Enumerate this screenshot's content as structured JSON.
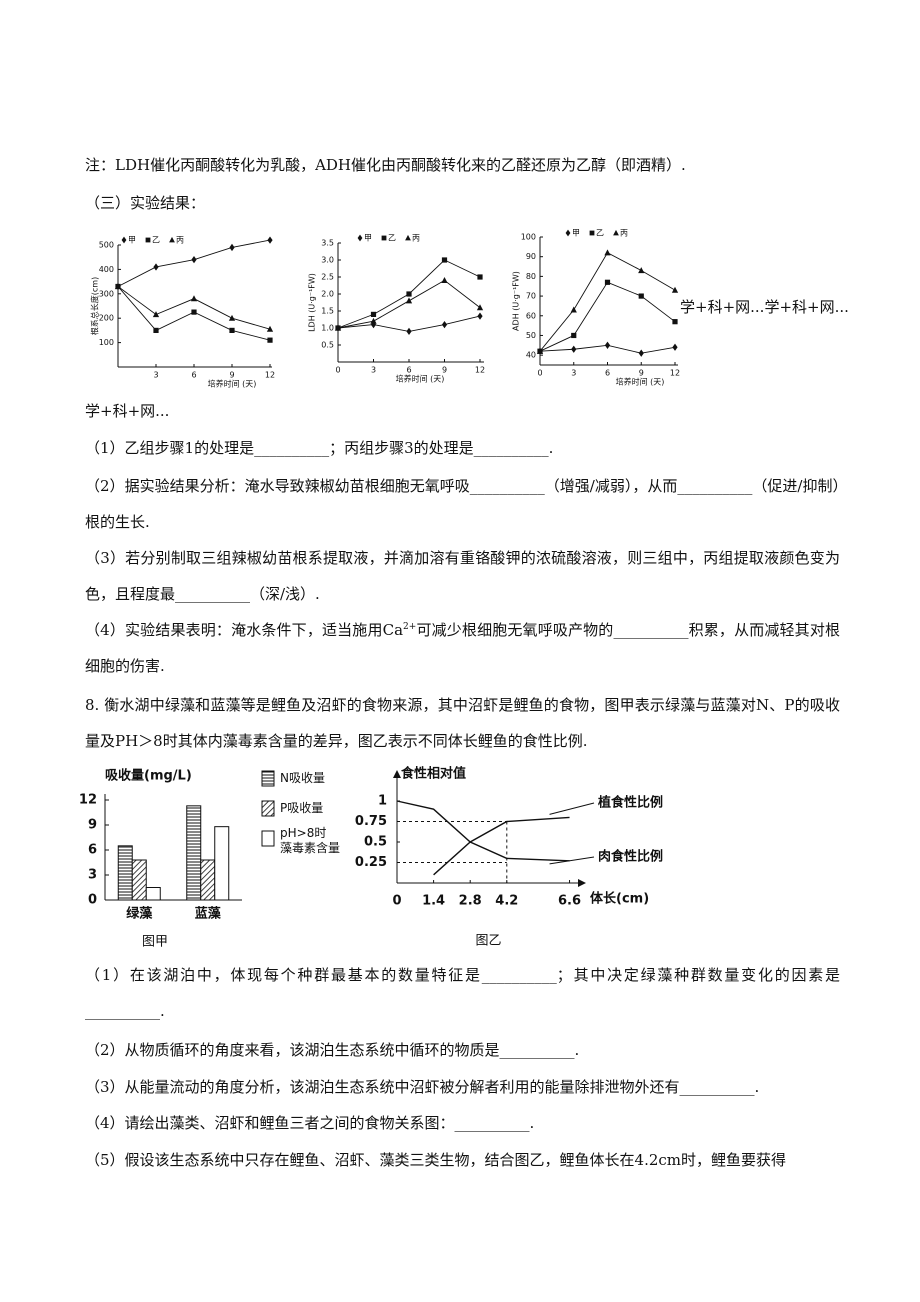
{
  "note": "注：LDH催化丙酮酸转化为乳酸，ADH催化由丙酮酸转化来的乙醛还原为乙醇（即酒精）.",
  "section": "（三）实验结果：",
  "figures_top": [
    {
      "type": "line",
      "y_label": "根系总长度(cm)",
      "x_label": "培养时间 (天)",
      "x": [
        0,
        3,
        6,
        9,
        12
      ],
      "xlim": [
        0,
        12
      ],
      "xticks": [
        3,
        6,
        9,
        12
      ],
      "ylim": [
        0,
        500
      ],
      "yticks": [
        100,
        200,
        300,
        400,
        500
      ],
      "series": [
        {
          "name": "甲",
          "marker": "diamond",
          "values": [
            330,
            410,
            440,
            490,
            520
          ]
        },
        {
          "name": "乙",
          "marker": "square",
          "values": [
            330,
            150,
            225,
            150,
            110
          ]
        },
        {
          "name": "丙",
          "marker": "triangle",
          "values": [
            330,
            215,
            280,
            200,
            155
          ]
        }
      ]
    },
    {
      "type": "line",
      "y_label": "LDH (U·g⁻¹FW)",
      "x_label": "培养时间 (天)",
      "x": [
        0,
        3,
        6,
        9,
        12
      ],
      "xlim": [
        0,
        12
      ],
      "xticks": [
        0,
        3,
        6,
        9,
        12
      ],
      "ylim": [
        0,
        3.5
      ],
      "yticks": [
        0.5,
        {
          "value": 1,
          "label": "1.0"
        },
        1.5,
        {
          "value": 2,
          "label": "2.0"
        },
        2.5,
        {
          "value": 3,
          "label": "3.0"
        },
        3.5
      ],
      "series": [
        {
          "name": "甲",
          "marker": "diamond",
          "values": [
            1.0,
            1.1,
            0.9,
            1.1,
            1.35
          ]
        },
        {
          "name": "乙",
          "marker": "square",
          "values": [
            1.0,
            1.4,
            2.0,
            3.0,
            2.5
          ]
        },
        {
          "name": "丙",
          "marker": "triangle",
          "values": [
            1.0,
            1.2,
            1.8,
            2.4,
            1.6
          ]
        }
      ]
    },
    {
      "type": "line",
      "y_label": "ADH (U·g⁻¹FW)",
      "x_label": "培养时间 (天)",
      "x": [
        0,
        3,
        6,
        9,
        12
      ],
      "xlim": [
        0,
        12
      ],
      "xticks": [
        0,
        3,
        6,
        9,
        12
      ],
      "ylim": [
        35,
        100
      ],
      "yticks": [
        40,
        50,
        60,
        70,
        80,
        90,
        100
      ],
      "series": [
        {
          "name": "甲",
          "marker": "diamond",
          "values": [
            42,
            43,
            45,
            41,
            44
          ]
        },
        {
          "name": "乙",
          "marker": "square",
          "values": [
            42,
            50,
            77,
            70,
            57
          ]
        },
        {
          "name": "丙",
          "marker": "triangle",
          "values": [
            42,
            63,
            92,
            83,
            73
          ]
        }
      ]
    }
  ],
  "watermark_right": "学+科+网...学+科+网...",
  "watermark_left": "学+科+网...",
  "q7": [
    "（1）乙组步骤1的处理是__________；丙组步骤3的处理是__________.",
    "（2）据实验结果分析：淹水导致辣椒幼苗根细胞无氧呼吸__________（增强/减弱），从而__________（促进/抑制）根的生长.",
    "（3）若分别制取三组辣椒幼苗根系提取液，并滴加溶有重铬酸钾的浓硫酸溶液，则三组中，丙组提取液颜色变为色，且程度最__________（深/浅）."
  ],
  "q7_4": {
    "before": "（4）实验结果表明：淹水条件下，适当施用Ca",
    "sup": "2+",
    "after": "可减少根细胞无氧呼吸产物的__________积累，从而减轻其对根细胞的伤害."
  },
  "q8_stem": "8. 衡水湖中绿藻和蓝藻等是鲤鱼及沼虾的食物来源，其中沼虾是鲤鱼的食物，图甲表示绿藻与蓝藻对N、P的吸收量及PH＞8时其体内藻毒素含量的差异，图乙表示不同体长鲤鱼的食性比例.",
  "fig_a": {
    "type": "bar",
    "caption": "图甲",
    "y_label": "吸收量(mg/L)",
    "categories": [
      "绿藻",
      "蓝藻"
    ],
    "ylim": [
      0,
      12
    ],
    "yticks": [
      0,
      3,
      6,
      9,
      12
    ],
    "series": [
      {
        "name": "N吸收量",
        "pattern": "horizontal",
        "values": [
          6.5,
          11.3
        ]
      },
      {
        "name": "P吸收量",
        "pattern": "diagonal",
        "values": [
          4.8,
          4.8
        ]
      },
      {
        "name": "pH>8时\n藻毒素含量",
        "pattern": "none",
        "values": [
          1.5,
          8.8
        ]
      }
    ]
  },
  "fig_b": {
    "type": "line",
    "caption": "图乙",
    "y_label": "食性相对值",
    "x_label": "体长(cm)",
    "x": [
      0,
      1.4,
      2.8,
      4.2,
      6.6
    ],
    "xlim": [
      0,
      7
    ],
    "xticks": [
      0,
      1.4,
      2.8,
      4.2,
      6.6
    ],
    "ylim": [
      0,
      1
    ],
    "yticks": [
      0.25,
      0.5,
      0.75,
      1
    ],
    "series": [
      {
        "name": "植食性比例",
        "values": [
          null,
          0.1,
          0.5,
          0.75,
          0.8
        ]
      },
      {
        "name": "肉食性比例",
        "values": [
          1,
          0.9,
          0.5,
          0.3,
          0.27
        ]
      }
    ]
  },
  "q8": [
    "（1）在该湖泊中，体现每个种群最基本的数量特征是__________；其中决定绿藻种群数量变化的因素是__________.",
    "（2）从物质循环的角度来看，该湖泊生态系统中循环的物质是__________.",
    "（3）从能量流动的角度分析，该湖泊生态系统中沼虾被分解者利用的能量除排泄物外还有__________.",
    "（4）请绘出藻类、沼虾和鲤鱼三者之间的食物关系图：__________.",
    "（5）假设该生态系统中只存在鲤鱼、沼虾、藻类三类生物，结合图乙，鲤鱼体长在4.2cm时，鲤鱼要获得"
  ]
}
